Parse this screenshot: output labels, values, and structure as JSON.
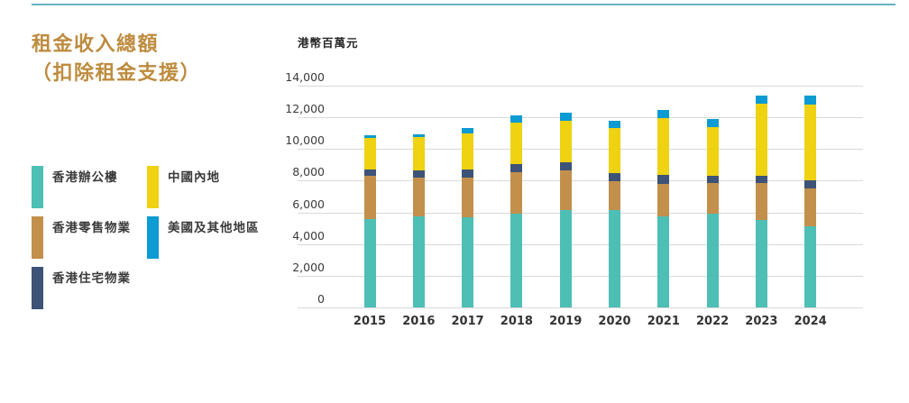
{
  "page": {
    "title_line1": "租金收入總額",
    "title_line2": "（扣除租金支援）",
    "title_color": "#BE8C3F",
    "top_rule_color": "#63B3C4"
  },
  "chart_data": {
    "type": "bar",
    "stacked": true,
    "title": "租金收入總額（扣除租金支援）",
    "unit_label": "港幣百萬元",
    "xlabel": "",
    "ylabel": "港幣百萬元",
    "ylim": [
      0,
      14000
    ],
    "ytick_step": 2000,
    "ytick_labels_top_to_bottom": [
      "14,000",
      "12,000",
      "10,000",
      "8,000",
      "6,000",
      "4,000",
      "2,000",
      "0"
    ],
    "grid": true,
    "legend_position": "left",
    "categories": [
      "2015",
      "2016",
      "2017",
      "2018",
      "2019",
      "2020",
      "2021",
      "2022",
      "2023",
      "2024"
    ],
    "series": [
      {
        "name": "香港辦公樓",
        "color": "#4DBFB5",
        "values": [
          5600,
          5750,
          5700,
          5900,
          6170,
          6130,
          5750,
          5900,
          5490,
          5140
        ]
      },
      {
        "name": "香港零售物業",
        "color": "#C3904C",
        "values": [
          2700,
          2420,
          2510,
          2630,
          2470,
          1830,
          2060,
          1950,
          2380,
          2390
        ]
      },
      {
        "name": "香港住宅物業",
        "color": "#3D5377",
        "values": [
          420,
          460,
          490,
          500,
          520,
          540,
          530,
          480,
          460,
          470
        ]
      },
      {
        "name": "中國內地",
        "color": "#EFD211",
        "values": [
          2000,
          2120,
          2310,
          2640,
          2630,
          2830,
          3600,
          3060,
          4550,
          4830
        ]
      },
      {
        "name": "美國及其他地區",
        "color": "#0C9BD2",
        "values": [
          170,
          170,
          320,
          460,
          500,
          440,
          530,
          480,
          520,
          540
        ]
      }
    ],
    "totals": [
      10890,
      10920,
      11330,
      12130,
      12290,
      11770,
      12470,
      11870,
      13400,
      13370
    ]
  }
}
